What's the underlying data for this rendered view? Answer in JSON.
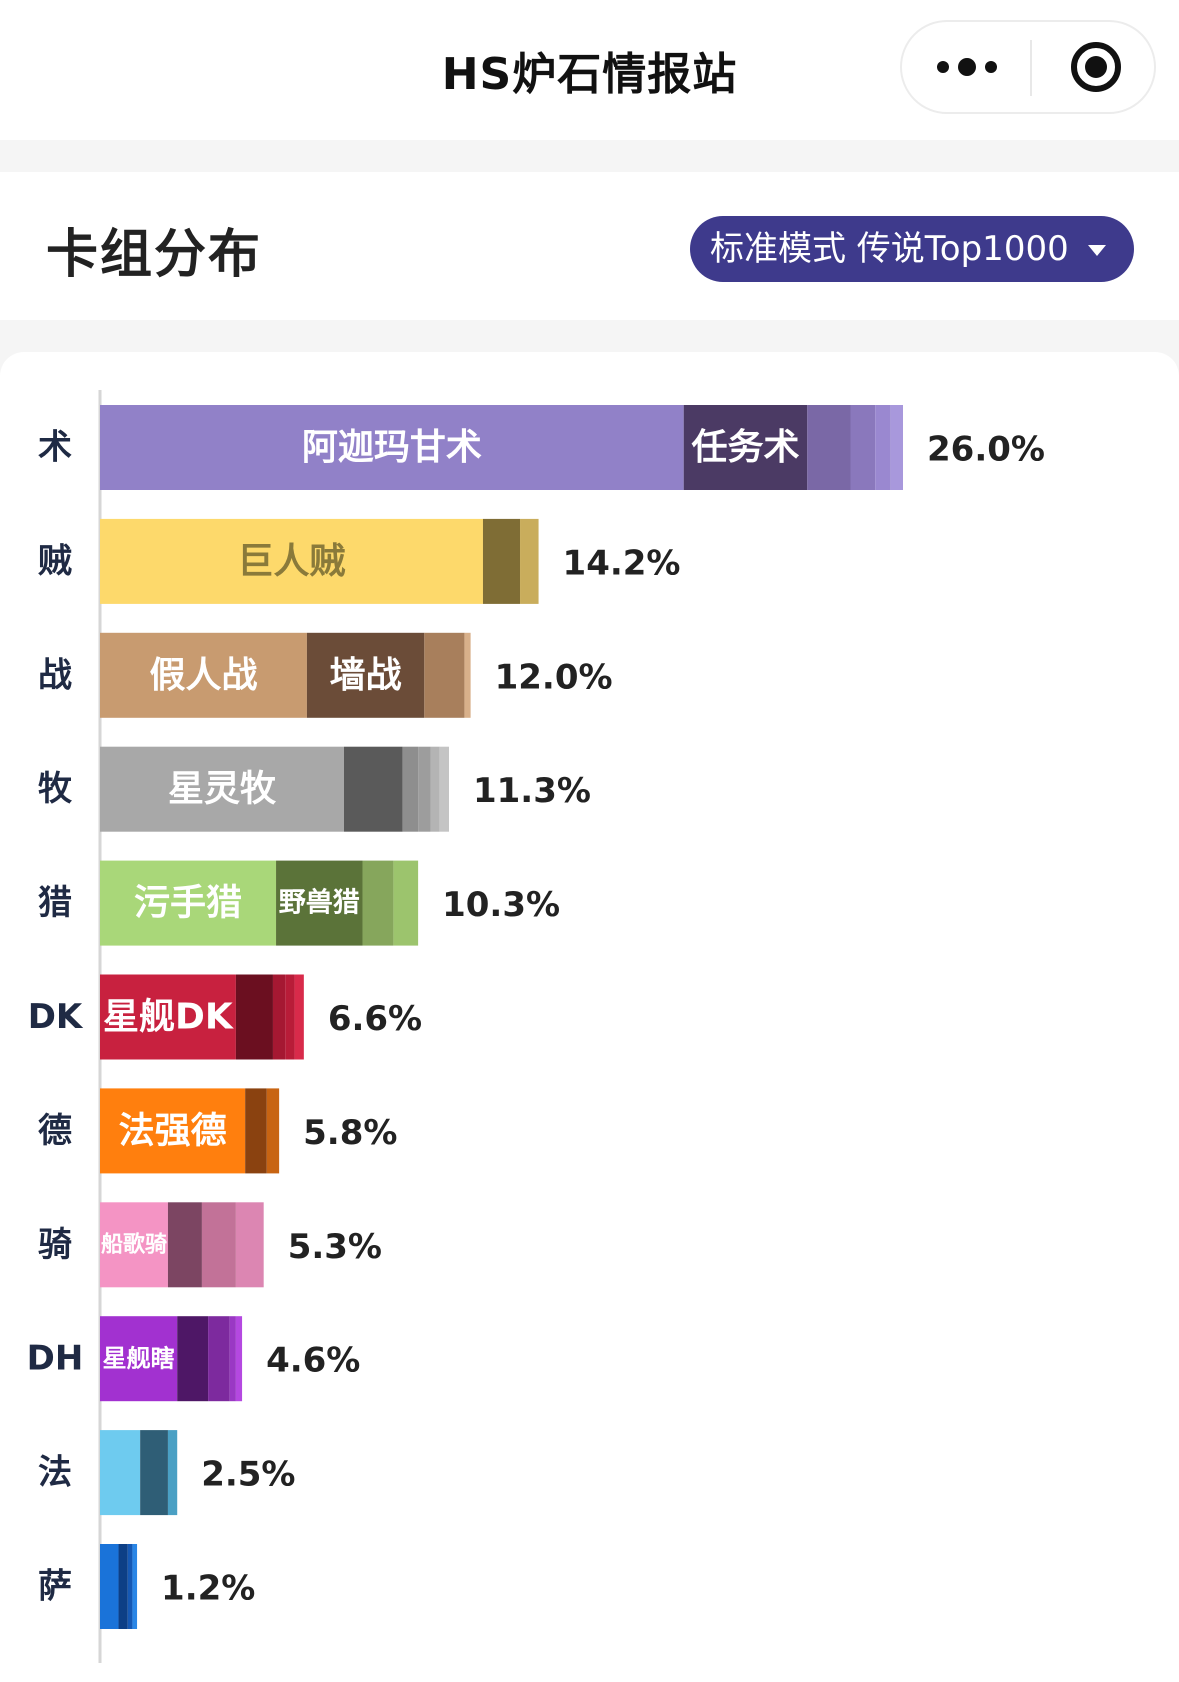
{
  "app": {
    "title": "HS炉石情报站"
  },
  "header": {
    "title": "卡组分布",
    "mode_selector": "标准模式  传说Top1000"
  },
  "icons": {
    "more": "more-dots-icon",
    "close": "close-circle-icon",
    "dropdown": "caret-down-icon"
  },
  "colors": {
    "selector_bg": "#3e3a8c"
  },
  "chart_data": {
    "type": "bar",
    "orientation": "horizontal",
    "stacked": true,
    "grid": false,
    "legend": "none",
    "xlim": [
      0,
      26
    ],
    "categories": [
      "术",
      "贼",
      "战",
      "牧",
      "猎",
      "DK",
      "德",
      "骑",
      "DH",
      "法",
      "萨"
    ],
    "totals": [
      "26.0%",
      "14.2%",
      "12.0%",
      "11.3%",
      "10.3%",
      "6.6%",
      "5.8%",
      "5.3%",
      "4.6%",
      "2.5%",
      "1.2%"
    ],
    "rows": [
      {
        "class": "术",
        "total": 26.0,
        "segments": [
          {
            "label": "阿迦玛甘术",
            "value": 18.9,
            "color": "#9181c8",
            "text_color": "#ffffff"
          },
          {
            "label": "任务术",
            "value": 4.0,
            "color": "#4b3a64",
            "text_color": "#ffffff"
          },
          {
            "label": "",
            "value": 1.4,
            "color": "#7a68a6"
          },
          {
            "label": "",
            "value": 0.8,
            "color": "#8a78bc"
          },
          {
            "label": "",
            "value": 0.5,
            "color": "#9a88d0"
          },
          {
            "label": "",
            "value": 0.4,
            "color": "#a898dc"
          }
        ]
      },
      {
        "class": "贼",
        "total": 14.2,
        "segments": [
          {
            "label": "巨人贼",
            "value": 12.4,
            "color": "#fdd96b",
            "text_color": "#8a7a3a"
          },
          {
            "label": "",
            "value": 1.2,
            "color": "#7f6d35"
          },
          {
            "label": "",
            "value": 0.6,
            "color": "#c9ad5c"
          }
        ]
      },
      {
        "class": "战",
        "total": 12.0,
        "segments": [
          {
            "label": "假人战",
            "value": 6.7,
            "color": "#c89b70",
            "text_color": "#ffffff"
          },
          {
            "label": "墙战",
            "value": 3.8,
            "color": "#6b4c38",
            "text_color": "#ffffff"
          },
          {
            "label": "",
            "value": 1.3,
            "color": "#a87f5c"
          },
          {
            "label": "",
            "value": 0.2,
            "color": "#d8b08a"
          }
        ]
      },
      {
        "class": "牧",
        "total": 11.3,
        "segments": [
          {
            "label": "星灵牧",
            "value": 7.9,
            "color": "#a8a8a8",
            "text_color": "#ffffff"
          },
          {
            "label": "",
            "value": 1.9,
            "color": "#5a5a5a"
          },
          {
            "label": "",
            "value": 0.5,
            "color": "#8e8e8e"
          },
          {
            "label": "",
            "value": 0.4,
            "color": "#9d9d9d"
          },
          {
            "label": "",
            "value": 0.3,
            "color": "#b4b4b4"
          },
          {
            "label": "",
            "value": 0.3,
            "color": "#c4c4c4"
          }
        ]
      },
      {
        "class": "猎",
        "total": 10.3,
        "segments": [
          {
            "label": "污手猎",
            "value": 5.7,
            "color": "#a9d779",
            "text_color": "#ffffff"
          },
          {
            "label": "野兽猎",
            "value": 2.8,
            "color": "#5b7339",
            "text_color": "#ffffff"
          },
          {
            "label": "",
            "value": 1.0,
            "color": "#86a65c"
          },
          {
            "label": "",
            "value": 0.8,
            "color": "#9cc46d"
          }
        ]
      },
      {
        "class": "DK",
        "total": 6.6,
        "segments": [
          {
            "label": "星舰DK",
            "value": 4.4,
            "color": "#c8213f",
            "text_color": "#ffffff"
          },
          {
            "label": "",
            "value": 1.2,
            "color": "#6b0f20"
          },
          {
            "label": "",
            "value": 0.4,
            "color": "#a51832"
          },
          {
            "label": "",
            "value": 0.3,
            "color": "#b81c38"
          },
          {
            "label": "",
            "value": 0.3,
            "color": "#d82a4a"
          }
        ]
      },
      {
        "class": "德",
        "total": 5.8,
        "segments": [
          {
            "label": "法强德",
            "value": 4.7,
            "color": "#ff7f0e",
            "text_color": "#ffffff"
          },
          {
            "label": "",
            "value": 0.7,
            "color": "#8a4210"
          },
          {
            "label": "",
            "value": 0.4,
            "color": "#c86412"
          }
        ]
      },
      {
        "class": "骑",
        "total": 5.3,
        "segments": [
          {
            "label": "船歌骑",
            "value": 2.2,
            "color": "#f494c4",
            "text_color": "#ffffff"
          },
          {
            "label": "",
            "value": 1.1,
            "color": "#7c4562"
          },
          {
            "label": "",
            "value": 1.1,
            "color": "#c27298"
          },
          {
            "label": "",
            "value": 0.9,
            "color": "#dc86b2"
          }
        ]
      },
      {
        "class": "DH",
        "total": 4.6,
        "segments": [
          {
            "label": "星舰瞎",
            "value": 2.5,
            "color": "#a231d0",
            "text_color": "#ffffff"
          },
          {
            "label": "",
            "value": 1.0,
            "color": "#4e1766"
          },
          {
            "label": "",
            "value": 0.7,
            "color": "#7d2a9e"
          },
          {
            "label": "",
            "value": 0.2,
            "color": "#9a38c4"
          },
          {
            "label": "",
            "value": 0.2,
            "color": "#b448e0"
          }
        ]
      },
      {
        "class": "法",
        "total": 2.5,
        "segments": [
          {
            "label": "",
            "value": 1.3,
            "color": "#6ecbef"
          },
          {
            "label": "",
            "value": 0.9,
            "color": "#2f5e76"
          },
          {
            "label": "",
            "value": 0.3,
            "color": "#4aa0c4"
          }
        ]
      },
      {
        "class": "萨",
        "total": 1.2,
        "segments": [
          {
            "label": "",
            "value": 0.6,
            "color": "#1a73d9"
          },
          {
            "label": "",
            "value": 0.3,
            "color": "#0d3f86"
          },
          {
            "label": "",
            "value": 0.15,
            "color": "#1558b4"
          },
          {
            "label": "",
            "value": 0.15,
            "color": "#2a86e6"
          }
        ]
      }
    ]
  }
}
